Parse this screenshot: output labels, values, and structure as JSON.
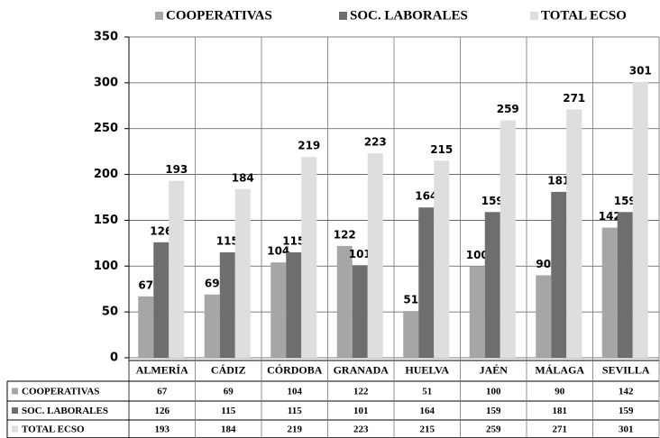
{
  "chart_data": {
    "type": "bar",
    "categories": [
      "ALMERÍA",
      "CÁDIZ",
      "CÓRDOBA",
      "GRANADA",
      "HUELVA",
      "JAÉN",
      "MÁLAGA",
      "SEVILLA"
    ],
    "series": [
      {
        "name": "COOPERATIVAS",
        "color": "#a6a6a6",
        "values": [
          67,
          69,
          104,
          122,
          51,
          100,
          90,
          142
        ]
      },
      {
        "name": "SOC. LABORALES",
        "color": "#6e6e6e",
        "values": [
          126,
          115,
          115,
          101,
          164,
          159,
          181,
          159
        ]
      },
      {
        "name": "TOTAL ECSO",
        "color": "#dedede",
        "values": [
          193,
          184,
          219,
          223,
          215,
          259,
          271,
          301
        ]
      }
    ],
    "ylim": [
      0,
      350
    ],
    "yticks": [
      0,
      50,
      100,
      150,
      200,
      250,
      300,
      350
    ],
    "grid": true,
    "legend": "top"
  }
}
